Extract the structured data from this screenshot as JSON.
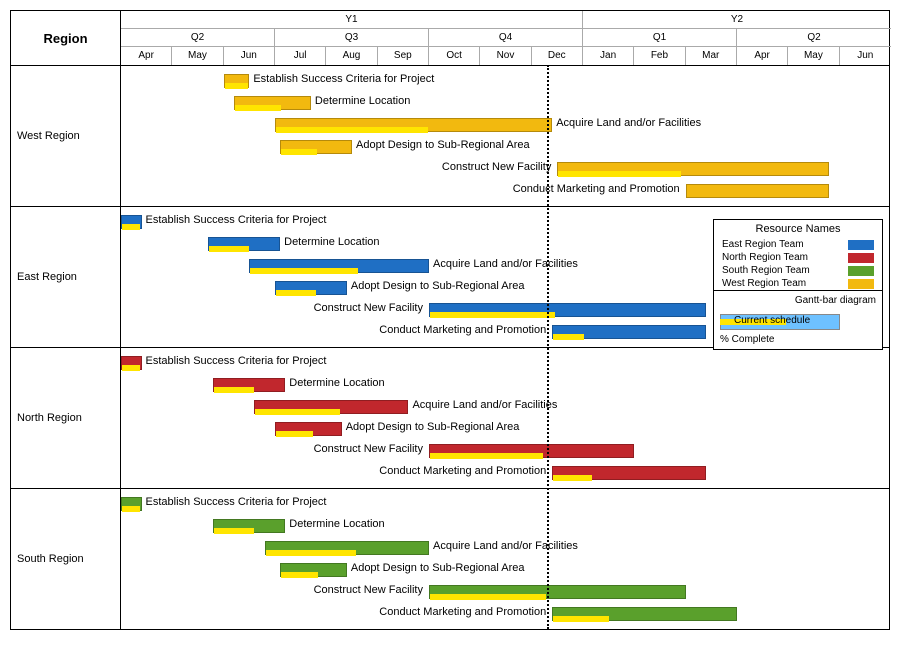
{
  "title": "Region",
  "timeline": {
    "months": [
      "Apr",
      "May",
      "Jun",
      "Jul",
      "Aug",
      "Sep",
      "Oct",
      "Nov",
      "Dec",
      "Jan",
      "Feb",
      "Mar",
      "Apr",
      "May",
      "Jun"
    ],
    "quarters": [
      {
        "label": "Q2",
        "span": 3
      },
      {
        "label": "Q3",
        "span": 3
      },
      {
        "label": "Q4",
        "span": 3
      },
      {
        "label": "Q1",
        "span": 3
      },
      {
        "label": "Q2",
        "span": 3
      }
    ],
    "years": [
      {
        "label": "Y1",
        "span": 9
      },
      {
        "label": "Y2",
        "span": 6
      }
    ],
    "today_month_offset": 8.3
  },
  "colors": {
    "east": "#1f6fc4",
    "north": "#c1272d",
    "south": "#5aa02c",
    "west": "#f2b90f",
    "progress": "#ffe500",
    "diagram_schedule": "#6ec1ff"
  },
  "legend": {
    "title": "Resource Names",
    "items": [
      {
        "label": "East Region Team",
        "color_key": "east"
      },
      {
        "label": "North Region Team",
        "color_key": "north"
      },
      {
        "label": "South Region Team",
        "color_key": "south"
      },
      {
        "label": "West Region Team",
        "color_key": "west"
      }
    ],
    "diagram_title": "Gantt-bar diagram",
    "schedule_label": "Current schedule",
    "complete_label": "% Complete"
  },
  "regions": [
    {
      "name": "West Region",
      "color_key": "west",
      "tasks": [
        {
          "label": "Establish Success Criteria for Project",
          "start": 2.0,
          "dur": 0.5,
          "complete": 0.9,
          "label_side": "right"
        },
        {
          "label": "Determine Location",
          "start": 2.2,
          "dur": 1.5,
          "complete": 0.6,
          "label_side": "right"
        },
        {
          "label": "Acquire Land and/or Facilities",
          "start": 3.0,
          "dur": 5.4,
          "complete": 0.55,
          "label_side": "right"
        },
        {
          "label": "Adopt Design to Sub-Regional Area",
          "start": 3.1,
          "dur": 1.4,
          "complete": 0.5,
          "label_side": "right"
        },
        {
          "label": "Construct New Facility",
          "start": 8.5,
          "dur": 5.3,
          "complete": 0.45,
          "label_side": "left"
        },
        {
          "label": "Conduct Marketing and Promotion",
          "start": 11.0,
          "dur": 2.8,
          "complete": 0.0,
          "label_side": "left"
        }
      ]
    },
    {
      "name": "East Region",
      "color_key": "east",
      "tasks": [
        {
          "label": "Establish Success Criteria for Project",
          "start": 0.0,
          "dur": 0.4,
          "complete": 0.9,
          "label_side": "right"
        },
        {
          "label": "Determine Location",
          "start": 1.7,
          "dur": 1.4,
          "complete": 0.55,
          "label_side": "right"
        },
        {
          "label": "Acquire Land and/or Facilities",
          "start": 2.5,
          "dur": 3.5,
          "complete": 0.6,
          "label_side": "right"
        },
        {
          "label": "Adopt Design to Sub-Regional Area",
          "start": 3.0,
          "dur": 1.4,
          "complete": 0.55,
          "label_side": "right"
        },
        {
          "label": "Construct New Facility",
          "start": 6.0,
          "dur": 5.4,
          "complete": 0.45,
          "label_side": "left"
        },
        {
          "label": "Conduct Marketing and Promotion",
          "start": 8.4,
          "dur": 3.0,
          "complete": 0.2,
          "label_side": "left"
        }
      ]
    },
    {
      "name": "North Region",
      "color_key": "north",
      "tasks": [
        {
          "label": "Establish Success Criteria for Project",
          "start": 0.0,
          "dur": 0.4,
          "complete": 0.9,
          "label_side": "right"
        },
        {
          "label": "Determine Location",
          "start": 1.8,
          "dur": 1.4,
          "complete": 0.55,
          "label_side": "right"
        },
        {
          "label": "Acquire Land and/or Facilities",
          "start": 2.6,
          "dur": 3.0,
          "complete": 0.55,
          "label_side": "right"
        },
        {
          "label": "Adopt Design to Sub-Regional Area",
          "start": 3.0,
          "dur": 1.3,
          "complete": 0.55,
          "label_side": "right"
        },
        {
          "label": "Construct New Facility",
          "start": 6.0,
          "dur": 4.0,
          "complete": 0.55,
          "label_side": "left"
        },
        {
          "label": "Conduct Marketing and Promotion",
          "start": 8.4,
          "dur": 3.0,
          "complete": 0.25,
          "label_side": "left"
        }
      ]
    },
    {
      "name": "South Region",
      "color_key": "south",
      "tasks": [
        {
          "label": "Establish Success Criteria for Project",
          "start": 0.0,
          "dur": 0.4,
          "complete": 0.9,
          "label_side": "right"
        },
        {
          "label": "Determine Location",
          "start": 1.8,
          "dur": 1.4,
          "complete": 0.55,
          "label_side": "right"
        },
        {
          "label": "Acquire Land and/or Facilities",
          "start": 2.8,
          "dur": 3.2,
          "complete": 0.55,
          "label_side": "right"
        },
        {
          "label": "Adopt Design to Sub-Regional Area",
          "start": 3.1,
          "dur": 1.3,
          "complete": 0.55,
          "label_side": "right"
        },
        {
          "label": "Construct New Facility",
          "start": 6.0,
          "dur": 5.0,
          "complete": 0.45,
          "label_side": "left"
        },
        {
          "label": "Conduct Marketing and Promotion",
          "start": 8.4,
          "dur": 3.6,
          "complete": 0.3,
          "label_side": "left"
        }
      ]
    }
  ]
}
